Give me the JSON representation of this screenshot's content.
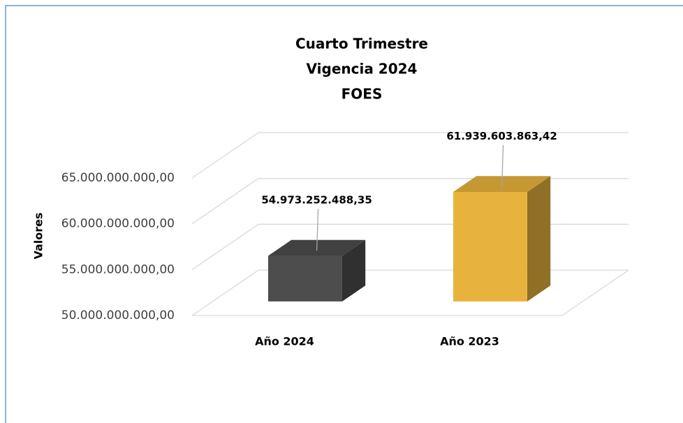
{
  "chart_data": {
    "type": "bar3d",
    "title": [
      "Cuarto Trimestre",
      "Vigencia 2024",
      "FOES"
    ],
    "y_label": "Valores",
    "categories": [
      "Año 2024",
      "Año 2023"
    ],
    "values": [
      54973252488.35,
      61939603863.42
    ],
    "value_labels": [
      "54.973.252.488,35",
      "61.939.603.863,42"
    ],
    "colors": [
      "#4d4d4d",
      "#e8b33d"
    ],
    "ylim": [
      50000000000,
      65000000000
    ],
    "yticks": [
      {
        "value": 50000000000,
        "label": "50.000.000.000,00"
      },
      {
        "value": 55000000000,
        "label": "55.000.000.000,00"
      },
      {
        "value": 60000000000,
        "label": "60.000.000.000,00"
      },
      {
        "value": 65000000000,
        "label": "65.000.000.000,00"
      }
    ],
    "grid": true
  }
}
